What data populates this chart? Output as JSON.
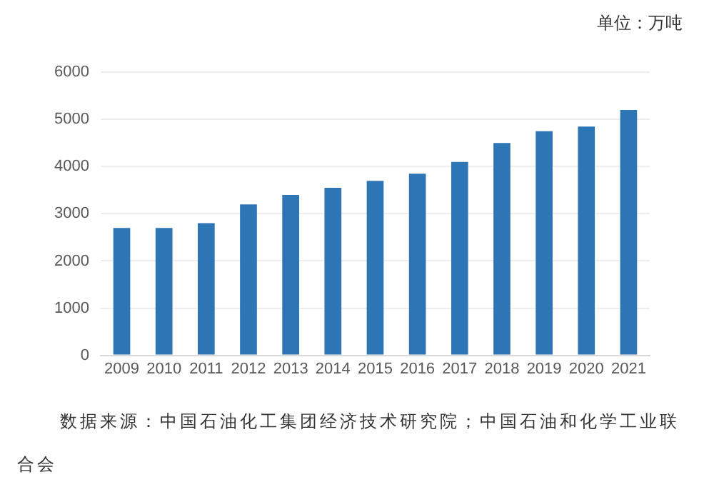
{
  "chart_data": {
    "type": "bar",
    "categories": [
      "2009",
      "2010",
      "2011",
      "2012",
      "2013",
      "2014",
      "2015",
      "2016",
      "2017",
      "2018",
      "2019",
      "2020",
      "2021"
    ],
    "values": [
      2700,
      2700,
      2800,
      3200,
      3400,
      3550,
      3700,
      3850,
      4100,
      4500,
      4750,
      4850,
      5200
    ],
    "color": "#2e75b6",
    "ylim": [
      0,
      6000
    ],
    "yticks": [
      0,
      1000,
      2000,
      3000,
      4000,
      5000,
      6000
    ],
    "grid": "y",
    "annotations": [
      "单位：万吨",
      "数据来源：中国石油化工集团经济技术研究院；中国石油和化学工业联合会"
    ]
  }
}
